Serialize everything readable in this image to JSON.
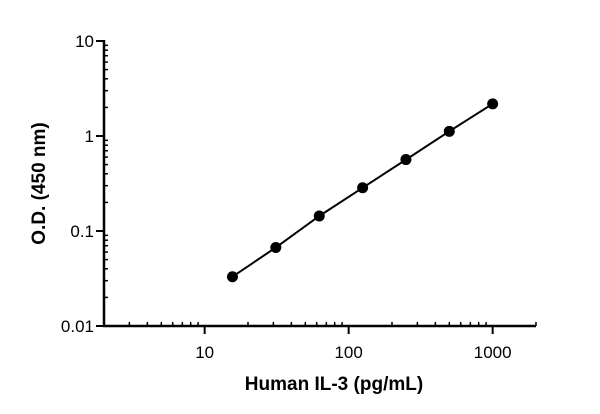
{
  "chart_data": {
    "type": "scatter",
    "xlabel": "Human IL-3 (pg/mL)",
    "ylabel": "O.D. (450 nm)",
    "x_scale": "log",
    "y_scale": "log",
    "xlim": [
      2,
      2000
    ],
    "ylim": [
      0.01,
      10
    ],
    "x_ticks": [
      "10",
      "100",
      "1000"
    ],
    "y_ticks": [
      "0.01",
      "0.1",
      "1",
      "10"
    ],
    "series": [
      {
        "points": [
          {
            "x": 15.6,
            "y": 0.033
          },
          {
            "x": 31.2,
            "y": 0.067
          },
          {
            "x": 62.5,
            "y": 0.144
          },
          {
            "x": 125,
            "y": 0.285
          },
          {
            "x": 250,
            "y": 0.565
          },
          {
            "x": 500,
            "y": 1.12
          },
          {
            "x": 1000,
            "y": 2.18
          }
        ]
      }
    ],
    "fit_line": true,
    "grid": false
  }
}
